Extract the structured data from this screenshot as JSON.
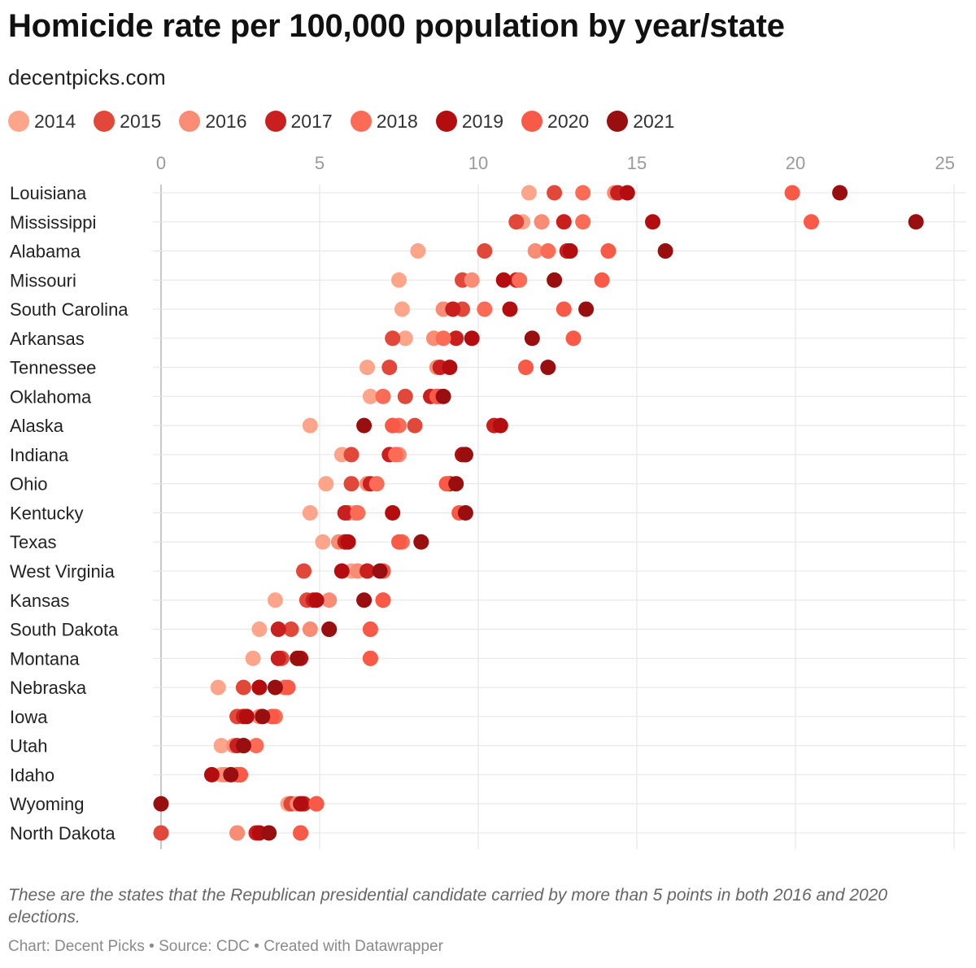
{
  "title": "Homicide rate per 100,000 population by year/state",
  "subtitle": "decentpicks.com",
  "notes": "These are the states that the Republican presidential candidate carried by more than 5 points in both 2016 and 2020 elections.",
  "credit": "Chart: Decent Picks • Source: CDC • Created with Datawrapper",
  "chart_data": {
    "type": "scatter",
    "title": "Homicide rate per 100,000 population by year/state",
    "subtitle": "decentpicks.com",
    "xlabel": "",
    "ylabel": "",
    "xlim": [
      0,
      25
    ],
    "xticks": [
      0,
      5,
      10,
      15,
      20,
      25
    ],
    "grid": true,
    "legend": "top-left",
    "categories": [
      "Louisiana",
      "Mississippi",
      "Alabama",
      "Missouri",
      "South Carolina",
      "Arkansas",
      "Tennessee",
      "Oklahoma",
      "Alaska",
      "Indiana",
      "Ohio",
      "Kentucky",
      "Texas",
      "West Virginia",
      "Kansas",
      "South Dakota",
      "Montana",
      "Nebraska",
      "Iowa",
      "Utah",
      "Idaho",
      "Wyoming",
      "North Dakota"
    ],
    "series": [
      {
        "name": "2014",
        "color": "#fca58a",
        "values": [
          11.6,
          11.4,
          8.1,
          7.5,
          7.6,
          7.7,
          6.5,
          6.6,
          4.7,
          5.7,
          5.2,
          4.7,
          5.1,
          6.0,
          3.6,
          3.1,
          2.9,
          1.8,
          2.4,
          1.9,
          1.9,
          4.0,
          2.4
        ]
      },
      {
        "name": "2015",
        "color": "#e2483a",
        "values": [
          12.4,
          11.2,
          10.2,
          9.5,
          9.5,
          7.3,
          7.2,
          7.7,
          8.0,
          6.0,
          6.0,
          5.9,
          5.8,
          4.5,
          4.6,
          4.1,
          3.8,
          2.6,
          2.4,
          2.6,
          2.5,
          4.1,
          0.0
        ]
      },
      {
        "name": "2016",
        "color": "#f98c75",
        "values": [
          14.3,
          12.0,
          11.8,
          9.8,
          8.9,
          8.6,
          8.7,
          8.8,
          7.3,
          7.5,
          6.5,
          6.1,
          5.6,
          6.2,
          5.3,
          4.7,
          4.3,
          3.9,
          3.1,
          2.3,
          2.0,
          4.3,
          2.4
        ]
      },
      {
        "name": "2017",
        "color": "#c9201f",
        "values": [
          14.4,
          12.7,
          12.8,
          11.2,
          9.2,
          9.3,
          8.8,
          8.5,
          10.5,
          7.2,
          6.6,
          5.8,
          5.8,
          6.5,
          4.8,
          3.7,
          3.7,
          3.1,
          2.6,
          2.4,
          2.4,
          4.5,
          3.0
        ]
      },
      {
        "name": "2018",
        "color": "#fb6b55",
        "values": [
          13.3,
          13.3,
          12.2,
          11.3,
          10.2,
          8.9,
          11.5,
          7.0,
          7.5,
          7.4,
          6.8,
          6.2,
          7.6,
          7.0,
          7.0,
          6.6,
          6.6,
          3.9,
          3.6,
          3.0,
          2.4,
          4.9,
          4.4
        ]
      },
      {
        "name": "2019",
        "color": "#b40d10",
        "values": [
          14.7,
          15.5,
          12.9,
          10.8,
          11.0,
          9.8,
          9.1,
          8.7,
          10.7,
          9.5,
          9.1,
          7.3,
          5.9,
          5.7,
          4.9,
          5.3,
          4.4,
          3.1,
          2.7,
          2.6,
          1.6,
          4.4,
          3.1
        ]
      },
      {
        "name": "2020",
        "color": "#f85a47",
        "values": [
          19.9,
          20.5,
          14.1,
          13.9,
          12.7,
          13.0,
          11.5,
          8.7,
          7.3,
          9.6,
          9.0,
          9.4,
          7.5,
          7.0,
          7.0,
          6.6,
          6.6,
          4.0,
          3.5,
          2.6,
          2.5,
          4.9,
          4.4
        ]
      },
      {
        "name": "2021",
        "color": "#990e0e",
        "values": [
          21.4,
          23.8,
          15.9,
          12.4,
          13.4,
          11.7,
          12.2,
          8.9,
          6.4,
          9.6,
          9.3,
          9.6,
          8.2,
          6.9,
          6.4,
          5.3,
          4.3,
          3.6,
          3.2,
          2.6,
          2.2,
          0.0,
          3.4
        ]
      }
    ]
  }
}
